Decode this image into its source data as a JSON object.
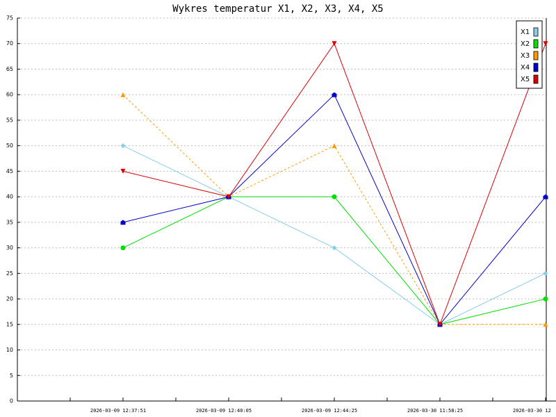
{
  "chart_data": {
    "type": "line",
    "title": "Wykres temperatur X1, X2, X3, X4, X5",
    "categories": [
      "2026-03-09 12:37:51",
      "2026-03-09 12:40:05",
      "2026-03-09 12:44:25",
      "2026-03-30 11:58:25",
      "2026-03-30 12"
    ],
    "series": [
      {
        "name": "X1",
        "color": "#87ceeb",
        "marker": "diamond",
        "line_style": "solid",
        "values": [
          50,
          40,
          30,
          15,
          25
        ]
      },
      {
        "name": "X2",
        "color": "#00e000",
        "marker": "circle",
        "line_style": "solid",
        "values": [
          30,
          40,
          40,
          15,
          20
        ]
      },
      {
        "name": "X3",
        "color": "#ff9900",
        "marker": "triangle-up",
        "line_style": "dashed",
        "values": [
          60,
          40,
          50,
          15,
          15
        ]
      },
      {
        "name": "X4",
        "color": "#0000cc",
        "marker": "square",
        "line_style": "solid",
        "values": [
          35,
          40,
          60,
          15,
          40
        ]
      },
      {
        "name": "X5",
        "color": "#dd0000",
        "marker": "triangle-down",
        "line_style": "solid",
        "values": [
          45,
          40,
          70,
          15,
          70
        ]
      }
    ],
    "ylim": [
      0,
      75
    ],
    "yticks": [
      0,
      5,
      10,
      15,
      20,
      25,
      30,
      35,
      40,
      45,
      50,
      55,
      60,
      65,
      70,
      75
    ],
    "grid": true,
    "legend": "top-right"
  }
}
